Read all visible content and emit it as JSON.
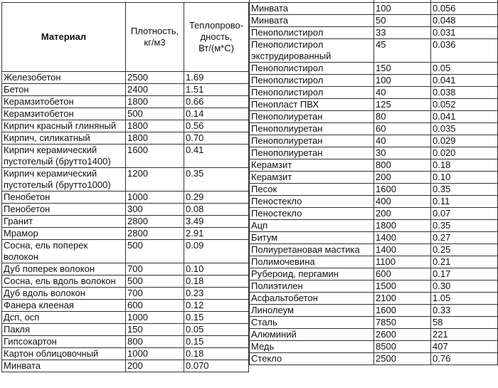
{
  "left_table": {
    "header": [
      "Материал",
      "Плотность, кг/м3",
      "Теплопрово-дность, Вт/(м*С)"
    ],
    "rows": [
      [
        "Железобетон",
        "2500",
        "1.69"
      ],
      [
        "Бетон",
        "2400",
        "1.51"
      ],
      [
        "Керамзитобетон",
        "1800",
        "0.66"
      ],
      [
        "Керамзитобетон",
        "500",
        "0.14"
      ],
      [
        "Кирпич красный глиняный",
        "1800",
        "0.56"
      ],
      [
        "Кирпич, силикатный",
        "1800",
        "0.70"
      ],
      [
        "Кирпич керамический пустотелый (брутто1400)",
        "1600",
        "0.41"
      ],
      [
        "Кирпич керамический пустотелый (брутто1000)",
        "1200",
        "0.35"
      ],
      [
        "Пенобетон",
        "1000",
        "0.29"
      ],
      [
        "Пенобетон",
        "300",
        "0.08"
      ],
      [
        "Гранит",
        "2800",
        "3.49"
      ],
      [
        "Мрамор",
        "2800",
        "2.91"
      ],
      [
        "Сосна, ель поперек волокон",
        "500",
        "0.09"
      ],
      [
        "Дуб поперек волокон",
        "700",
        "0.10"
      ],
      [
        "Сосна, ель вдоль волокон",
        "500",
        "0.18"
      ],
      [
        "Дуб вдоль волокон",
        "700",
        "0.23"
      ],
      [
        "Фанера клееная",
        "600",
        "0.12"
      ],
      [
        "Дсп, осп",
        "1000",
        "0.15"
      ],
      [
        "Пакля",
        "150",
        "0.05"
      ],
      [
        "Гипсокартон",
        "800",
        "0.15"
      ],
      [
        "Картон облицовочный",
        "1000",
        "0.18"
      ],
      [
        "Минвата",
        "200",
        "0.070"
      ]
    ]
  },
  "right_table": {
    "rows": [
      [
        "Минвата",
        "100",
        "0.056"
      ],
      [
        "Минвата",
        "50",
        "0.048"
      ],
      [
        "Пенополистирол",
        "33",
        "0.031"
      ],
      [
        "Пенополистирол экструдированный",
        "45",
        "0.036"
      ],
      [
        "Пенополистирол",
        "150",
        "0.05"
      ],
      [
        "Пенополистирол",
        "100",
        "0.041"
      ],
      [
        "Пенополистирол",
        "40",
        "0.038"
      ],
      [
        "Пенопласт ПВХ",
        "125",
        "0.052"
      ],
      [
        "Пенополиуретан",
        "80",
        "0.041"
      ],
      [
        "Пенополиуретан",
        "60",
        "0.035"
      ],
      [
        "Пенополиуретан",
        "40",
        "0.029"
      ],
      [
        "Пенополиуретан",
        "30",
        "0.020"
      ],
      [
        "Керамзит",
        "800",
        "0.18"
      ],
      [
        "Керамзит",
        "200",
        "0.10"
      ],
      [
        "Песок",
        "1600",
        "0.35"
      ],
      [
        "Пеностекло",
        "400",
        "0.11"
      ],
      [
        "Пеностекло",
        "200",
        "0.07"
      ],
      [
        "Ацп",
        "1800",
        "0.35"
      ],
      [
        "Битум",
        "1400",
        "0.27"
      ],
      [
        "Полиуретановая мастика",
        "1400",
        "0.25"
      ],
      [
        "Полимочевина",
        "1100",
        "0.21"
      ],
      [
        "Рубероид, пергамин",
        "600",
        "0.17"
      ],
      [
        "Полиэтилен",
        "1500",
        "0.30"
      ],
      [
        "Асфальтобетон",
        "2100",
        "1.05"
      ],
      [
        "Линолеум",
        "1600",
        "0.33"
      ],
      [
        "Сталь",
        "7850",
        "58"
      ],
      [
        "Алюминий",
        "2600",
        "221"
      ],
      [
        "Медь",
        "8500",
        "407"
      ],
      [
        "Стекло",
        "2500",
        "0.76"
      ]
    ]
  }
}
